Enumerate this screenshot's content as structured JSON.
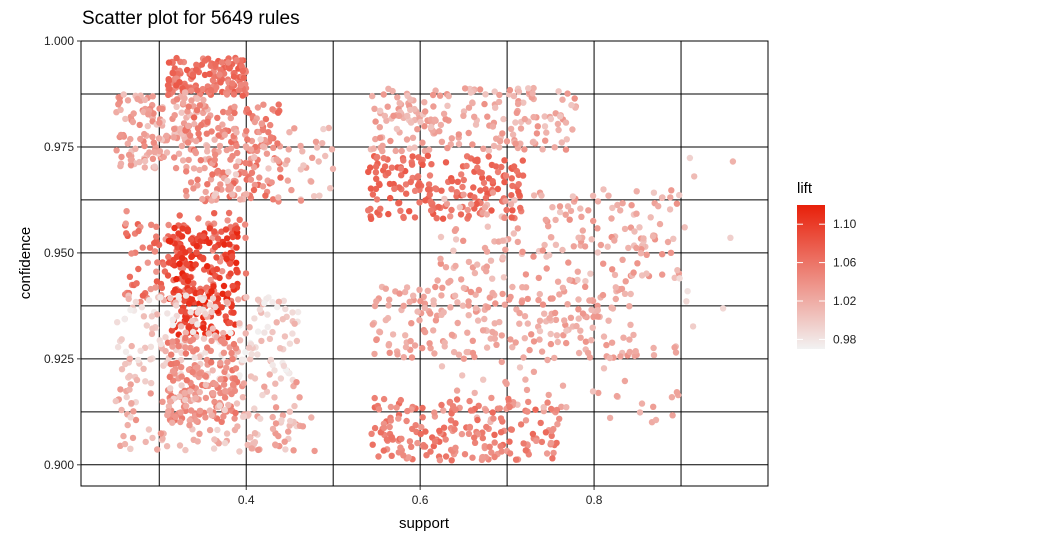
{
  "chart_data": {
    "type": "scatter",
    "title": "Scatter plot for 5649 rules",
    "xlabel": "support",
    "ylabel": "confidence",
    "xlim": [
      0.21,
      1.0
    ],
    "ylim": [
      0.895,
      1.0
    ],
    "x_ticks": [
      0.4,
      0.6,
      0.8
    ],
    "x_tick_labels": [
      "0.4",
      "0.6",
      "0.8"
    ],
    "y_ticks": [
      0.9,
      0.925,
      0.95,
      0.975,
      1.0
    ],
    "y_tick_labels": [
      "0.900",
      "0.925",
      "0.950",
      "0.975",
      "1.000"
    ],
    "grid": true,
    "legend": {
      "title": "lift",
      "placement": "right",
      "range": [
        0.97,
        1.12
      ],
      "ticks": [
        0.98,
        1.02,
        1.06,
        1.1
      ],
      "tick_labels": [
        "0.98",
        "1.02",
        "1.06",
        "1.10"
      ],
      "color_low": "#f2f2f2",
      "color_high": "#e8200a"
    },
    "clusters": [
      {
        "x": [
          0.31,
          0.4
        ],
        "y": [
          0.987,
          0.996
        ],
        "n": 150,
        "lift": [
          1.04,
          1.08
        ]
      },
      {
        "x": [
          0.25,
          0.36
        ],
        "y": [
          0.97,
          0.988
        ],
        "n": 160,
        "lift": [
          1.0,
          1.05
        ]
      },
      {
        "x": [
          0.33,
          0.44
        ],
        "y": [
          0.962,
          0.985
        ],
        "n": 180,
        "lift": [
          1.02,
          1.07
        ]
      },
      {
        "x": [
          0.36,
          0.5
        ],
        "y": [
          0.962,
          0.98
        ],
        "n": 60,
        "lift": [
          0.99,
          1.04
        ]
      },
      {
        "x": [
          0.26,
          0.4
        ],
        "y": [
          0.938,
          0.96
        ],
        "n": 130,
        "lift": [
          1.03,
          1.08
        ]
      },
      {
        "x": [
          0.31,
          0.39
        ],
        "y": [
          0.93,
          0.956
        ],
        "n": 200,
        "lift": [
          1.08,
          1.12
        ]
      },
      {
        "x": [
          0.25,
          0.46
        ],
        "y": [
          0.92,
          0.94
        ],
        "n": 200,
        "lift": [
          0.97,
          1.02
        ]
      },
      {
        "x": [
          0.31,
          0.39
        ],
        "y": [
          0.91,
          0.93
        ],
        "n": 150,
        "lift": [
          1.03,
          1.06
        ]
      },
      {
        "x": [
          0.25,
          0.48
        ],
        "y": [
          0.903,
          0.92
        ],
        "n": 150,
        "lift": [
          0.99,
          1.04
        ]
      },
      {
        "x": [
          0.54,
          0.78
        ],
        "y": [
          0.974,
          0.989
        ],
        "n": 200,
        "lift": [
          1.0,
          1.04
        ]
      },
      {
        "x": [
          0.54,
          0.72
        ],
        "y": [
          0.958,
          0.973
        ],
        "n": 180,
        "lift": [
          1.05,
          1.08
        ]
      },
      {
        "x": [
          0.62,
          0.9
        ],
        "y": [
          0.943,
          0.965
        ],
        "n": 180,
        "lift": [
          1.0,
          1.04
        ]
      },
      {
        "x": [
          0.54,
          0.85
        ],
        "y": [
          0.925,
          0.942
        ],
        "n": 220,
        "lift": [
          1.01,
          1.04
        ]
      },
      {
        "x": [
          0.62,
          0.9
        ],
        "y": [
          0.91,
          0.932
        ],
        "n": 60,
        "lift": [
          1.0,
          1.03
        ]
      },
      {
        "x": [
          0.54,
          0.76
        ],
        "y": [
          0.901,
          0.916
        ],
        "n": 200,
        "lift": [
          1.03,
          1.07
        ]
      },
      {
        "x": [
          0.85,
          0.96
        ],
        "y": [
          0.925,
          0.975
        ],
        "n": 12,
        "lift": [
          0.98,
          1.02
        ]
      }
    ]
  }
}
